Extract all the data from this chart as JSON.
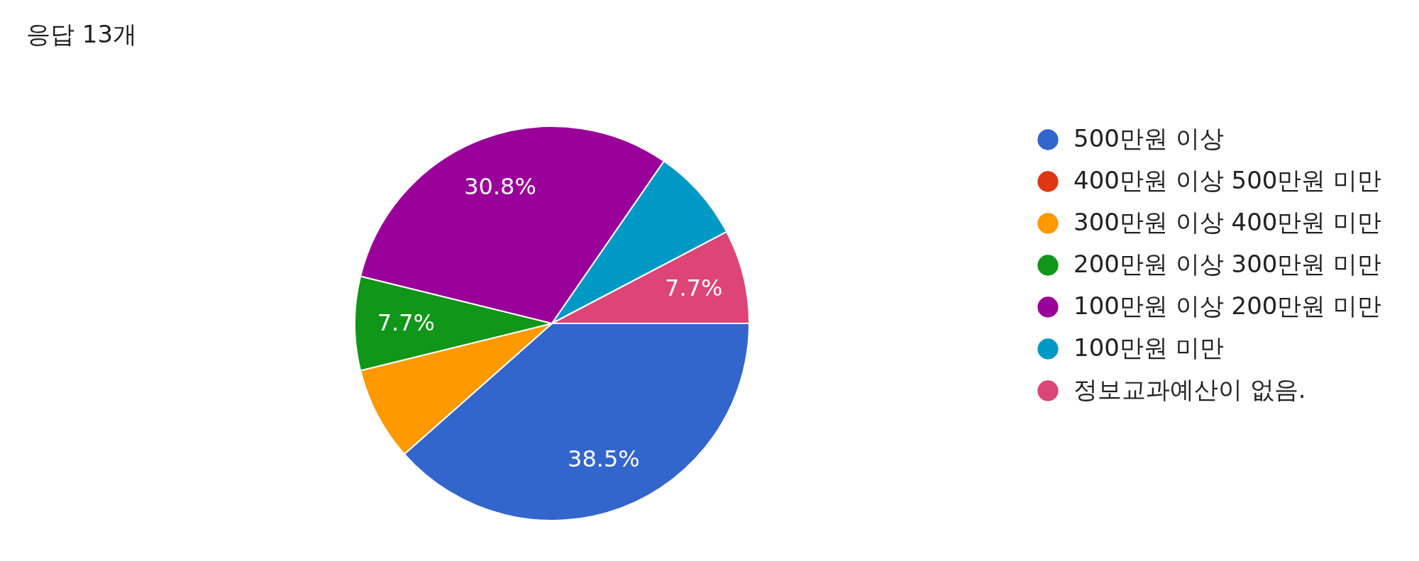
{
  "chart_data": {
    "type": "pie",
    "title": "응답 13개",
    "categories": [
      "500만원 이상",
      "400만원 이상 500만원 미만",
      "300만원 이상 400만원 미만",
      "200만원 이상 300만원 미만",
      "100만원 이상 200만원 미만",
      "100만원 미만",
      "정보교과예산이 없음."
    ],
    "values": [
      38.5,
      0,
      7.7,
      7.7,
      30.8,
      7.7,
      7.7
    ],
    "colors": [
      "#3366cc",
      "#dc3912",
      "#ff9900",
      "#109618",
      "#990099",
      "#0099c6",
      "#dd4477"
    ],
    "value_labels": [
      "38.5%",
      null,
      null,
      "7.7%",
      "30.8%",
      null,
      "7.7%"
    ],
    "legend": "right"
  }
}
